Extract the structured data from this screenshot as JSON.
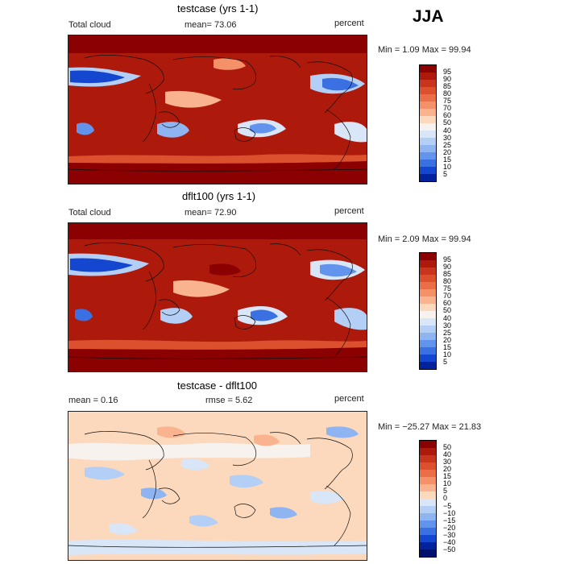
{
  "page": {
    "season": "JJA"
  },
  "panels": [
    {
      "title": "testcase (yrs 1-1)",
      "variable": "Total cloud",
      "stat": "mean=  73.06",
      "units": "percent",
      "minmax": "Min =    1.09  Max =   99.94"
    },
    {
      "title": "dflt100 (yrs 1-1)",
      "variable": "Total cloud",
      "stat": "mean=  72.90",
      "units": "percent",
      "minmax": "Min =    2.09  Max =   99.94"
    },
    {
      "title": "testcase - dflt100",
      "stat_left": "mean =    0.16",
      "stat": "rmse =    5.62",
      "units": "percent",
      "minmax": "Min = −25.27  Max =   21.83"
    }
  ],
  "chart_data": [
    {
      "type": "heatmap",
      "title": "testcase (yrs 1-1)",
      "field": "Total cloud",
      "units": "percent",
      "mean": 73.06,
      "min": 1.09,
      "max": 99.94,
      "colorbar": {
        "levels": [
          "95",
          "90",
          "85",
          "80",
          "75",
          "70",
          "60",
          "50",
          "40",
          "30",
          "25",
          "20",
          "15",
          "10",
          "5"
        ],
        "colors": [
          "#8b0000",
          "#ad1a0c",
          "#c8341c",
          "#dc502e",
          "#ea6e48",
          "#f49168",
          "#f9b48f",
          "#fcd8bc",
          "#f7f2ee",
          "#d8e6f8",
          "#b4cff6",
          "#8eb4f2",
          "#6394ed",
          "#3a70e2",
          "#1446d0",
          "#00229c"
        ]
      }
    },
    {
      "type": "heatmap",
      "title": "dflt100 (yrs 1-1)",
      "field": "Total cloud",
      "units": "percent",
      "mean": 72.9,
      "min": 2.09,
      "max": 99.94,
      "colorbar": {
        "levels": [
          "95",
          "90",
          "85",
          "80",
          "75",
          "70",
          "60",
          "50",
          "40",
          "30",
          "25",
          "20",
          "15",
          "10",
          "5"
        ],
        "colors": [
          "#8b0000",
          "#ad1a0c",
          "#c8341c",
          "#dc502e",
          "#ea6e48",
          "#f49168",
          "#f9b48f",
          "#fcd8bc",
          "#f7f2ee",
          "#d8e6f8",
          "#b4cff6",
          "#8eb4f2",
          "#6394ed",
          "#3a70e2",
          "#1446d0",
          "#00229c"
        ]
      }
    },
    {
      "type": "heatmap",
      "title": "testcase - dflt100",
      "units": "percent",
      "mean": 0.16,
      "rmse": 5.62,
      "min": -25.27,
      "max": 21.83,
      "colorbar": {
        "levels": [
          "50",
          "40",
          "30",
          "20",
          "15",
          "10",
          "5",
          "0",
          "−5",
          "−10",
          "−15",
          "−20",
          "−30",
          "−40",
          "−50"
        ],
        "colors": [
          "#8b0000",
          "#ad1a0c",
          "#c8341c",
          "#dc502e",
          "#ea6e48",
          "#f49168",
          "#f9b48f",
          "#fcd8bc",
          "#d8e6f8",
          "#b4cff6",
          "#8eb4f2",
          "#6394ed",
          "#3a70e2",
          "#1446d0",
          "#00229c",
          "#00106e"
        ]
      }
    }
  ]
}
